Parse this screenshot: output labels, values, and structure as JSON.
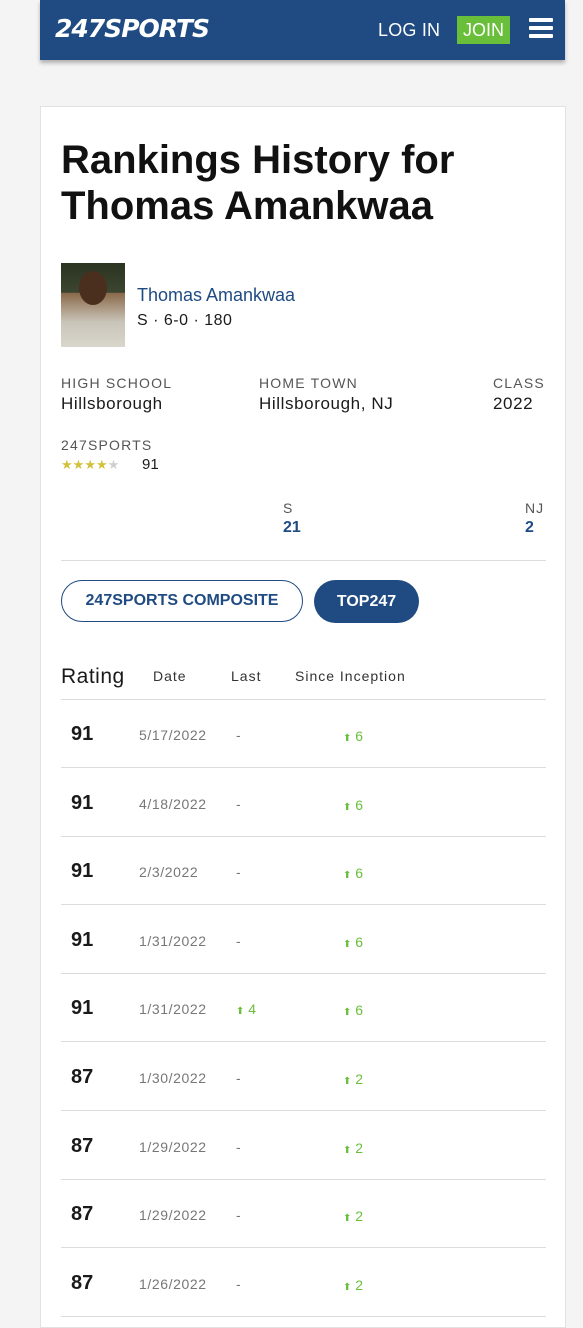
{
  "header": {
    "logo": "247SPORTS",
    "login_label": "LOG IN",
    "join_label": "JOIN"
  },
  "page": {
    "title": "Rankings History for Thomas Amankwaa"
  },
  "player": {
    "name": "Thomas Amankwaa",
    "meta": "S · 6-0 · 180"
  },
  "info": {
    "high_school_label": "HIGH SCHOOL",
    "high_school": "Hillsborough",
    "home_town_label": "HOME TOWN",
    "home_town": "Hillsborough, NJ",
    "class_label": "CLASS",
    "class": "2022"
  },
  "rating": {
    "label": "247SPORTS",
    "stars_filled": 4,
    "stars_total": 5,
    "value": "91"
  },
  "ranks": {
    "position_label": "S",
    "position_value": "21",
    "state_label": "NJ",
    "state_value": "2"
  },
  "tabs": {
    "composite_label": "247SPORTS COMPOSITE",
    "top247_label": "TOP247"
  },
  "table": {
    "headers": {
      "rating": "Rating",
      "date": "Date",
      "last": "Last",
      "since": "Since Inception"
    },
    "up_arrow": "⬆",
    "rows": [
      {
        "rating": "91",
        "date": "5/17/2022",
        "last": "-",
        "last_up": false,
        "since": "6"
      },
      {
        "rating": "91",
        "date": "4/18/2022",
        "last": "-",
        "last_up": false,
        "since": "6"
      },
      {
        "rating": "91",
        "date": "2/3/2022",
        "last": "-",
        "last_up": false,
        "since": "6"
      },
      {
        "rating": "91",
        "date": "1/31/2022",
        "last": "-",
        "last_up": false,
        "since": "6"
      },
      {
        "rating": "91",
        "date": "1/31/2022",
        "last": "4",
        "last_up": true,
        "since": "6"
      },
      {
        "rating": "87",
        "date": "1/30/2022",
        "last": "-",
        "last_up": false,
        "since": "2"
      },
      {
        "rating": "87",
        "date": "1/29/2022",
        "last": "-",
        "last_up": false,
        "since": "2"
      },
      {
        "rating": "87",
        "date": "1/29/2022",
        "last": "-",
        "last_up": false,
        "since": "2"
      },
      {
        "rating": "87",
        "date": "1/26/2022",
        "last": "-",
        "last_up": false,
        "since": "2"
      }
    ]
  },
  "colors": {
    "brand_blue": "#1f4b82",
    "join_green": "#6abf3a",
    "star_gold": "#d2c13a"
  }
}
